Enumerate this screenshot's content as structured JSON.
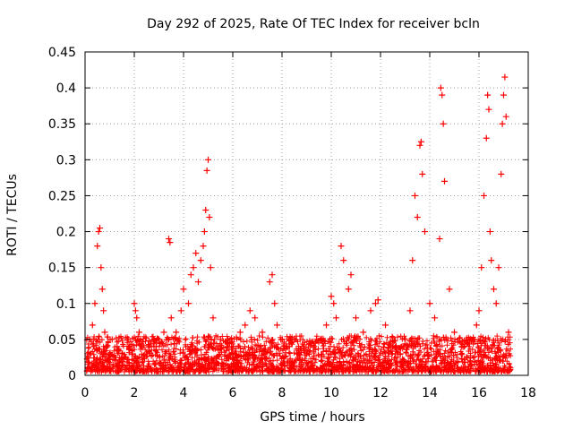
{
  "chart_data": {
    "type": "scatter",
    "title": "Day 292 of 2025, Rate Of TEC Index for receiver bcln",
    "xlabel": "GPS time / hours",
    "ylabel": "ROTI / TECUs",
    "xlim": [
      0,
      18
    ],
    "ylim": [
      0,
      0.45
    ],
    "xticks": [
      0,
      2,
      4,
      6,
      8,
      10,
      12,
      14,
      16,
      18
    ],
    "xtick_labels": [
      "0",
      "2",
      "4",
      "6",
      "8",
      "10",
      "12",
      "14",
      "16",
      "18"
    ],
    "yticks": [
      0,
      0.05,
      0.1,
      0.15,
      0.2,
      0.25,
      0.3,
      0.35,
      0.4,
      0.45
    ],
    "ytick_labels": [
      "0",
      "0.05",
      "0.1",
      "0.15",
      "0.2",
      "0.25",
      "0.3",
      "0.35",
      "0.4",
      "0.45"
    ],
    "grid": true,
    "marker": "+",
    "color": "#ff0000",
    "series": [
      {
        "name": "ROTI",
        "x": [
          0.1,
          0.2,
          0.3,
          0.4,
          0.5,
          0.55,
          0.6,
          0.65,
          0.7,
          0.75,
          0.8,
          0.9,
          1.0,
          1.1,
          1.3,
          1.5,
          1.8,
          2.0,
          2.05,
          2.1,
          2.2,
          2.3,
          2.5,
          2.8,
          3.0,
          3.2,
          3.4,
          3.45,
          3.5,
          3.7,
          3.9,
          4.0,
          4.2,
          4.3,
          4.4,
          4.5,
          4.6,
          4.7,
          4.8,
          4.85,
          4.9,
          4.95,
          5.0,
          5.05,
          5.1,
          5.2,
          5.5,
          5.8,
          6.0,
          6.3,
          6.5,
          6.7,
          6.9,
          7.2,
          7.5,
          7.6,
          7.7,
          7.8,
          8.0,
          8.3,
          8.6,
          9.0,
          9.3,
          9.6,
          9.8,
          10.0,
          10.1,
          10.2,
          10.4,
          10.5,
          10.7,
          10.8,
          11.0,
          11.3,
          11.6,
          11.8,
          11.9,
          12.2,
          12.5,
          12.8,
          13.0,
          13.2,
          13.3,
          13.4,
          13.5,
          13.6,
          13.65,
          13.7,
          13.8,
          14.0,
          14.2,
          14.4,
          14.45,
          14.5,
          14.55,
          14.6,
          14.8,
          15.0,
          15.3,
          15.6,
          15.9,
          16.0,
          16.1,
          16.2,
          16.3,
          16.35,
          16.4,
          16.45,
          16.5,
          16.6,
          16.7,
          16.8,
          16.9,
          16.95,
          17.0,
          17.05,
          17.1,
          17.2
        ],
        "y": [
          0.03,
          0.05,
          0.07,
          0.1,
          0.18,
          0.2,
          0.205,
          0.15,
          0.12,
          0.09,
          0.06,
          0.04,
          0.03,
          0.05,
          0.04,
          0.03,
          0.04,
          0.1,
          0.09,
          0.08,
          0.06,
          0.04,
          0.03,
          0.04,
          0.05,
          0.06,
          0.19,
          0.185,
          0.08,
          0.06,
          0.09,
          0.12,
          0.1,
          0.14,
          0.15,
          0.17,
          0.13,
          0.16,
          0.18,
          0.2,
          0.23,
          0.285,
          0.3,
          0.22,
          0.15,
          0.08,
          0.05,
          0.04,
          0.03,
          0.06,
          0.07,
          0.09,
          0.08,
          0.06,
          0.13,
          0.14,
          0.1,
          0.07,
          0.05,
          0.04,
          0.03,
          0.03,
          0.04,
          0.05,
          0.07,
          0.11,
          0.1,
          0.08,
          0.18,
          0.16,
          0.12,
          0.14,
          0.08,
          0.06,
          0.09,
          0.1,
          0.105,
          0.07,
          0.04,
          0.03,
          0.05,
          0.09,
          0.16,
          0.25,
          0.22,
          0.32,
          0.325,
          0.28,
          0.2,
          0.1,
          0.08,
          0.19,
          0.4,
          0.39,
          0.35,
          0.27,
          0.12,
          0.06,
          0.04,
          0.05,
          0.07,
          0.09,
          0.15,
          0.25,
          0.33,
          0.39,
          0.37,
          0.2,
          0.16,
          0.12,
          0.1,
          0.15,
          0.28,
          0.35,
          0.39,
          0.415,
          0.36,
          0.06
        ]
      }
    ]
  }
}
